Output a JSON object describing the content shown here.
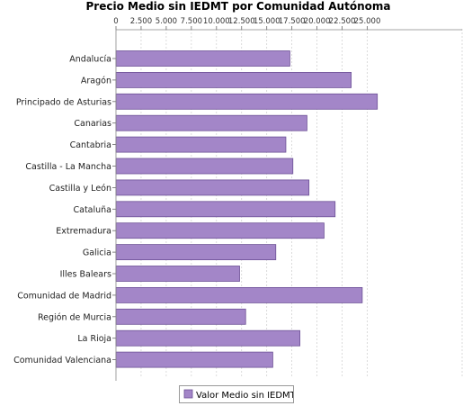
{
  "chart_data": {
    "type": "bar",
    "orientation": "horizontal",
    "title": "Precio Medio sin IEDMT por Comunidad Autónoma",
    "categories": [
      "Andalucía",
      "Aragón",
      "Principado de Asturias",
      "Canarias",
      "Cantabria",
      "Castilla - La Mancha",
      "Castilla y León",
      "Cataluña",
      "Extremadura",
      "Galicia",
      "Illes Balears",
      "Comunidad de Madrid",
      "Región de Murcia",
      "La Rioja",
      "Comunidad Valenciana"
    ],
    "series": [
      {
        "name": "Valor Medio sin IEDMT",
        "values": [
          17300,
          23400,
          26000,
          19000,
          16900,
          17600,
          19200,
          21800,
          20700,
          15900,
          12300,
          24500,
          12900,
          18300,
          15600
        ]
      }
    ],
    "xticks": [
      "0",
      "2.500",
      "5.000",
      "7.500",
      "10.000",
      "12.500",
      "15.000",
      "17.500",
      "20.000",
      "22.500",
      "25.000"
    ],
    "xlim": [
      0,
      27000
    ],
    "grid": true,
    "legend": "bottom",
    "colors": {
      "bar_fill": "#a386c8",
      "bar_stroke": "#6d5196",
      "grid": "#cccccc"
    }
  }
}
